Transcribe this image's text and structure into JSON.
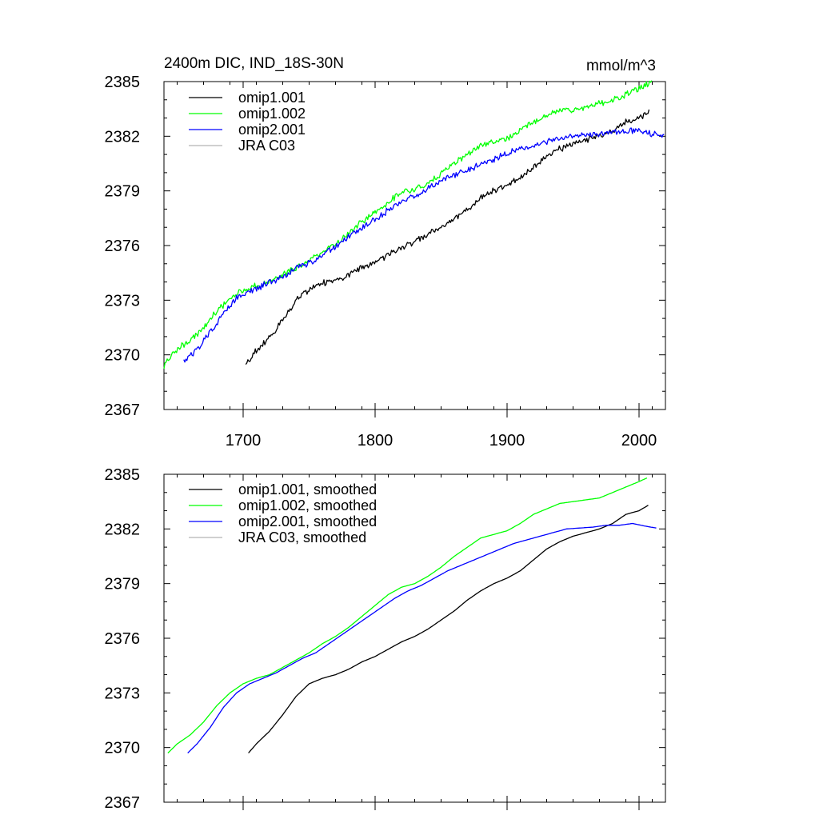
{
  "chart_data": [
    {
      "type": "line",
      "title_left": "2400m DIC, IND_18S-30N",
      "title_right": "mmol/m^3",
      "xlim": [
        1640,
        2020
      ],
      "ylim": [
        2367,
        2385
      ],
      "yticks": [
        "2367",
        "2370",
        "2373",
        "2376",
        "2379",
        "2382",
        "2385"
      ],
      "xticks": [
        "1700",
        "1800",
        "1900",
        "2000"
      ],
      "show_x_tick_labels": true,
      "series": [
        {
          "name": "omip1.001",
          "color": "#000000",
          "noisy": true,
          "points": [
            [
              1702,
              2369.4
            ],
            [
              1710,
              2370.3
            ],
            [
              1720,
              2370.9
            ],
            [
              1730,
              2371.9
            ],
            [
              1740,
              2373.0
            ],
            [
              1750,
              2373.6
            ],
            [
              1760,
              2373.9
            ],
            [
              1770,
              2374.1
            ],
            [
              1780,
              2374.4
            ],
            [
              1790,
              2374.8
            ],
            [
              1800,
              2375.1
            ],
            [
              1810,
              2375.5
            ],
            [
              1820,
              2375.9
            ],
            [
              1830,
              2376.2
            ],
            [
              1840,
              2376.6
            ],
            [
              1850,
              2377.0
            ],
            [
              1860,
              2377.5
            ],
            [
              1870,
              2378.0
            ],
            [
              1880,
              2378.6
            ],
            [
              1890,
              2379.0
            ],
            [
              1900,
              2379.3
            ],
            [
              1910,
              2379.7
            ],
            [
              1920,
              2380.3
            ],
            [
              1930,
              2380.9
            ],
            [
              1940,
              2381.3
            ],
            [
              1950,
              2381.6
            ],
            [
              1960,
              2381.8
            ],
            [
              1970,
              2382.0
            ],
            [
              1980,
              2382.3
            ],
            [
              1990,
              2382.8
            ],
            [
              2000,
              2383.0
            ],
            [
              2008,
              2383.4
            ]
          ]
        },
        {
          "name": "omip1.002",
          "color": "#00ff00",
          "noisy": true,
          "points": [
            [
              1640,
              2369.4
            ],
            [
              1650,
              2370.3
            ],
            [
              1660,
              2370.8
            ],
            [
              1670,
              2371.5
            ],
            [
              1680,
              2372.4
            ],
            [
              1690,
              2373.1
            ],
            [
              1700,
              2373.6
            ],
            [
              1710,
              2373.8
            ],
            [
              1720,
              2374.0
            ],
            [
              1730,
              2374.4
            ],
            [
              1740,
              2374.8
            ],
            [
              1750,
              2375.2
            ],
            [
              1760,
              2375.7
            ],
            [
              1770,
              2376.1
            ],
            [
              1780,
              2376.7
            ],
            [
              1790,
              2377.3
            ],
            [
              1800,
              2377.8
            ],
            [
              1810,
              2378.4
            ],
            [
              1820,
              2378.9
            ],
            [
              1830,
              2379.1
            ],
            [
              1840,
              2379.4
            ],
            [
              1850,
              2379.9
            ],
            [
              1860,
              2380.5
            ],
            [
              1870,
              2381.0
            ],
            [
              1880,
              2381.5
            ],
            [
              1890,
              2381.7
            ],
            [
              1900,
              2381.9
            ],
            [
              1910,
              2382.3
            ],
            [
              1920,
              2382.8
            ],
            [
              1930,
              2383.1
            ],
            [
              1940,
              2383.4
            ],
            [
              1950,
              2383.5
            ],
            [
              1960,
              2383.6
            ],
            [
              1970,
              2383.8
            ],
            [
              1980,
              2384.0
            ],
            [
              1990,
              2384.3
            ],
            [
              2000,
              2384.6
            ],
            [
              2010,
              2385.0
            ]
          ]
        },
        {
          "name": "omip2.001",
          "color": "#0000ff",
          "noisy": true,
          "points": [
            [
              1655,
              2369.6
            ],
            [
              1665,
              2370.3
            ],
            [
              1675,
              2371.2
            ],
            [
              1685,
              2372.3
            ],
            [
              1695,
              2373.1
            ],
            [
              1705,
              2373.5
            ],
            [
              1715,
              2373.8
            ],
            [
              1725,
              2374.1
            ],
            [
              1735,
              2374.5
            ],
            [
              1745,
              2374.9
            ],
            [
              1755,
              2375.2
            ],
            [
              1765,
              2375.7
            ],
            [
              1775,
              2376.2
            ],
            [
              1785,
              2376.7
            ],
            [
              1795,
              2377.2
            ],
            [
              1805,
              2377.7
            ],
            [
              1815,
              2378.2
            ],
            [
              1825,
              2378.6
            ],
            [
              1835,
              2378.9
            ],
            [
              1845,
              2379.3
            ],
            [
              1855,
              2379.7
            ],
            [
              1865,
              2380.0
            ],
            [
              1875,
              2380.3
            ],
            [
              1885,
              2380.6
            ],
            [
              1895,
              2380.9
            ],
            [
              1905,
              2381.2
            ],
            [
              1915,
              2381.4
            ],
            [
              1925,
              2381.6
            ],
            [
              1935,
              2381.8
            ],
            [
              1945,
              2382.0
            ],
            [
              1955,
              2382.05
            ],
            [
              1965,
              2382.1
            ],
            [
              1975,
              2382.2
            ],
            [
              1985,
              2382.2
            ],
            [
              1995,
              2382.3
            ],
            [
              2005,
              2382.2
            ],
            [
              2012,
              2382.1
            ],
            [
              2019,
              2382.0
            ]
          ]
        },
        {
          "name": "JRA C03",
          "color": "#b4b4b4",
          "noisy": false,
          "points": []
        }
      ]
    },
    {
      "type": "line",
      "xlim": [
        1640,
        2020
      ],
      "ylim": [
        2367,
        2385
      ],
      "yticks": [
        "2367",
        "2370",
        "2373",
        "2376",
        "2379",
        "2382",
        "2385"
      ],
      "xticks": [
        "1700",
        "1800",
        "1900",
        "2000"
      ],
      "show_x_tick_labels": false,
      "series": [
        {
          "name": "omip1.001, smoothed",
          "color": "#000000",
          "noisy": false,
          "points": [
            [
              1704,
              2369.7
            ],
            [
              1710,
              2370.2
            ],
            [
              1720,
              2370.9
            ],
            [
              1730,
              2371.8
            ],
            [
              1740,
              2372.8
            ],
            [
              1750,
              2373.5
            ],
            [
              1760,
              2373.8
            ],
            [
              1770,
              2374.0
            ],
            [
              1780,
              2374.3
            ],
            [
              1790,
              2374.7
            ],
            [
              1800,
              2375.0
            ],
            [
              1810,
              2375.4
            ],
            [
              1820,
              2375.8
            ],
            [
              1830,
              2376.1
            ],
            [
              1840,
              2376.5
            ],
            [
              1850,
              2377.0
            ],
            [
              1860,
              2377.5
            ],
            [
              1870,
              2378.1
            ],
            [
              1880,
              2378.6
            ],
            [
              1890,
              2379.0
            ],
            [
              1900,
              2379.3
            ],
            [
              1910,
              2379.7
            ],
            [
              1920,
              2380.3
            ],
            [
              1930,
              2380.9
            ],
            [
              1940,
              2381.3
            ],
            [
              1950,
              2381.6
            ],
            [
              1960,
              2381.8
            ],
            [
              1970,
              2382.0
            ],
            [
              1980,
              2382.3
            ],
            [
              1990,
              2382.8
            ],
            [
              2000,
              2383.0
            ],
            [
              2007,
              2383.3
            ]
          ]
        },
        {
          "name": "omip1.002, smoothed",
          "color": "#00ff00",
          "noisy": false,
          "points": [
            [
              1643,
              2369.7
            ],
            [
              1650,
              2370.2
            ],
            [
              1660,
              2370.7
            ],
            [
              1670,
              2371.4
            ],
            [
              1680,
              2372.3
            ],
            [
              1690,
              2373.0
            ],
            [
              1700,
              2373.5
            ],
            [
              1710,
              2373.8
            ],
            [
              1720,
              2374.0
            ],
            [
              1730,
              2374.4
            ],
            [
              1740,
              2374.8
            ],
            [
              1750,
              2375.2
            ],
            [
              1760,
              2375.7
            ],
            [
              1770,
              2376.1
            ],
            [
              1780,
              2376.6
            ],
            [
              1790,
              2377.2
            ],
            [
              1800,
              2377.8
            ],
            [
              1810,
              2378.4
            ],
            [
              1820,
              2378.8
            ],
            [
              1830,
              2379.0
            ],
            [
              1840,
              2379.4
            ],
            [
              1850,
              2379.9
            ],
            [
              1860,
              2380.5
            ],
            [
              1870,
              2381.0
            ],
            [
              1880,
              2381.5
            ],
            [
              1890,
              2381.7
            ],
            [
              1900,
              2381.9
            ],
            [
              1910,
              2382.3
            ],
            [
              1920,
              2382.8
            ],
            [
              1930,
              2383.1
            ],
            [
              1940,
              2383.4
            ],
            [
              1950,
              2383.5
            ],
            [
              1960,
              2383.6
            ],
            [
              1970,
              2383.7
            ],
            [
              1980,
              2384.0
            ],
            [
              1990,
              2384.3
            ],
            [
              2000,
              2384.6
            ],
            [
              2006,
              2384.8
            ]
          ]
        },
        {
          "name": "omip2.001, smoothed",
          "color": "#0000ff",
          "noisy": false,
          "points": [
            [
              1658,
              2369.7
            ],
            [
              1665,
              2370.2
            ],
            [
              1675,
              2371.1
            ],
            [
              1685,
              2372.2
            ],
            [
              1695,
              2373.0
            ],
            [
              1705,
              2373.5
            ],
            [
              1715,
              2373.8
            ],
            [
              1725,
              2374.1
            ],
            [
              1735,
              2374.5
            ],
            [
              1745,
              2374.9
            ],
            [
              1755,
              2375.2
            ],
            [
              1765,
              2375.7
            ],
            [
              1775,
              2376.2
            ],
            [
              1785,
              2376.7
            ],
            [
              1795,
              2377.2
            ],
            [
              1805,
              2377.7
            ],
            [
              1815,
              2378.2
            ],
            [
              1825,
              2378.6
            ],
            [
              1835,
              2378.9
            ],
            [
              1845,
              2379.3
            ],
            [
              1855,
              2379.7
            ],
            [
              1865,
              2380.0
            ],
            [
              1875,
              2380.3
            ],
            [
              1885,
              2380.6
            ],
            [
              1895,
              2380.9
            ],
            [
              1905,
              2381.2
            ],
            [
              1915,
              2381.4
            ],
            [
              1925,
              2381.6
            ],
            [
              1935,
              2381.8
            ],
            [
              1945,
              2382.0
            ],
            [
              1955,
              2382.05
            ],
            [
              1965,
              2382.1
            ],
            [
              1975,
              2382.2
            ],
            [
              1985,
              2382.2
            ],
            [
              1995,
              2382.3
            ],
            [
              2005,
              2382.15
            ],
            [
              2013,
              2382.05
            ]
          ]
        },
        {
          "name": "JRA C03, smoothed",
          "color": "#b4b4b4",
          "noisy": false,
          "points": []
        }
      ]
    }
  ]
}
